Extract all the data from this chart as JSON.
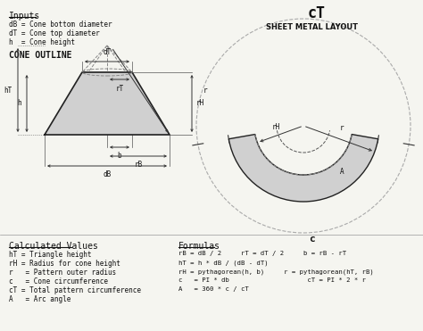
{
  "bg_color": "#f5f5f0",
  "title_cT": "cT",
  "title_sheet": "SHEET METAL LAYOUT",
  "title_cone": "CONE OUTLINE",
  "inputs_title": "Inputs",
  "inputs_lines": [
    "dB = Cone bottom diameter",
    "dT = Cone top diameter",
    "h  = Cone height"
  ],
  "calc_title": "Calculated Values",
  "calc_lines": [
    "hT = Triangle height",
    "rH = Radius for cone height",
    "r   = Pattern outer radius",
    "c   = Cone circumference",
    "cT = Total pattern circumference",
    "A   = Arc angle"
  ],
  "formulas_title": "Formulas",
  "formulas_lines": [
    "rB = dB / 2     rT = dT / 2     b = rB - rT",
    "hT = h * dB / (dB - dT)",
    "rH = pythagorean(h, b)     r = pythagorean(hT, rB)",
    "c   = PI * db                    cT = PI * 2 * r",
    "A   = 360 * c / cT"
  ],
  "cone_fill": "#d0d0d0",
  "arc_fill": "#d0d0d0",
  "label_color": "#222222",
  "dashed_color": "#888888",
  "arrow_color": "#333333"
}
